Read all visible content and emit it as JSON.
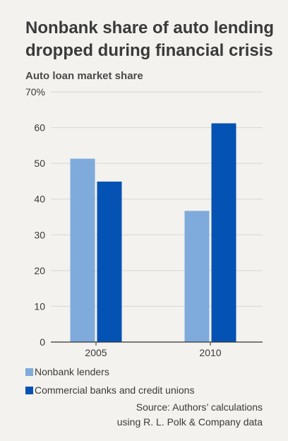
{
  "title_lines": [
    "Nonbank share of auto lending",
    "dropped during financial crisis"
  ],
  "subtitle": "Auto loan market share",
  "colors": {
    "nonbank": "#7faadc",
    "banks": "#0552b5",
    "background": "#f3f2ee",
    "grid": "#d6d6d6"
  },
  "chart_data": {
    "type": "bar",
    "title": "Nonbank share of auto lending dropped during financial crisis",
    "ylabel": "Auto loan market share",
    "categories": [
      "2005",
      "2010"
    ],
    "series": [
      {
        "name": "Nonbank lenders",
        "values": [
          51.3,
          36.7
        ]
      },
      {
        "name": "Commercial banks and credit unions",
        "values": [
          44.9,
          61.2
        ]
      }
    ],
    "ylim": [
      0,
      70
    ],
    "yticks": [
      "0",
      "10",
      "20",
      "30",
      "40",
      "50",
      "60",
      "70%"
    ],
    "grid": true,
    "legend_position": "bottom-left"
  },
  "legend": [
    "Nonbank lenders",
    "Commercial banks and credit unions"
  ],
  "source_lines": [
    "Source: Authors’ calculations",
    "using R. L. Polk & Company data"
  ]
}
